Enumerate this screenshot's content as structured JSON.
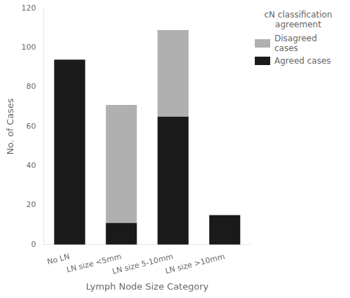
{
  "chart_data": {
    "type": "bar",
    "stacked": true,
    "grid": false,
    "legend": "right",
    "xlabel": "Lymph Node Size Category",
    "ylabel": "No. of Cases",
    "legend_title": "cN classification\nagreement",
    "categories": [
      "No LN",
      "LN size <5mm",
      "LN size 5-10mm",
      "LN size >10mm"
    ],
    "series": [
      {
        "name": "Agreed cases",
        "color": "#1a1a1a",
        "values": [
          94,
          11,
          65,
          15
        ]
      },
      {
        "name": "Disagreed cases",
        "color": "#b0b0b0",
        "values": [
          0,
          60,
          44,
          0
        ]
      }
    ],
    "ylim": [
      0,
      120
    ],
    "yticks": [
      0,
      20,
      40,
      60,
      80,
      100,
      120
    ]
  }
}
